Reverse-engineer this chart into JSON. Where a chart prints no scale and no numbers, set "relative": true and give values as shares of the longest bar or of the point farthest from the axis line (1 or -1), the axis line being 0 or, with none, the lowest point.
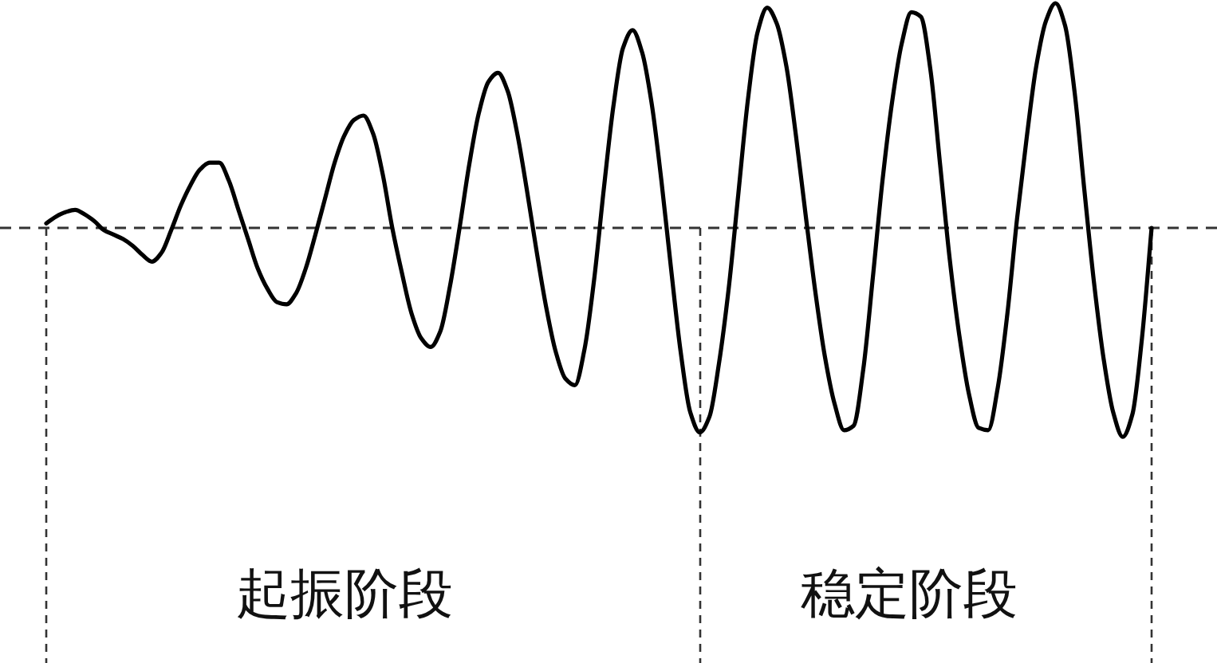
{
  "chart_data": {
    "type": "line",
    "relative": true,
    "categories": [
      null,
      null,
      null,
      null,
      null,
      null,
      null,
      null,
      null,
      null,
      null,
      null,
      null,
      null,
      null,
      null,
      null,
      null,
      null,
      null,
      null,
      null,
      null,
      null,
      null,
      null,
      null,
      null,
      null,
      null,
      null,
      null,
      null,
      null,
      null,
      null,
      null,
      null,
      null,
      null,
      null,
      null,
      null,
      null,
      null,
      null,
      null,
      null,
      null,
      null,
      null,
      null,
      null,
      null,
      null,
      null,
      null,
      null,
      null,
      null,
      null,
      null,
      null,
      null,
      null,
      null,
      null,
      null,
      null,
      null,
      null,
      null,
      null,
      null,
      null,
      null,
      null,
      null,
      null,
      null,
      null,
      null,
      null,
      null,
      null,
      null,
      null,
      null,
      null,
      null,
      null,
      null,
      null,
      null,
      null,
      null,
      null,
      null,
      null,
      null,
      null,
      null,
      null,
      null,
      null,
      null,
      null,
      null,
      null,
      null,
      null,
      null,
      null,
      null,
      null,
      null
    ],
    "series": [
      {
        "color": "#000000",
        "values": [
          0.02,
          0.05,
          0.07,
          0.08,
          0.06,
          0.03,
          -0.01,
          -0.03,
          -0.05,
          -0.08,
          -0.12,
          -0.15,
          -0.11,
          -0.01,
          0.1,
          0.19,
          0.26,
          0.29,
          0.29,
          0.21,
          0.08,
          -0.05,
          -0.18,
          -0.27,
          -0.33,
          -0.34,
          -0.29,
          -0.18,
          -0.03,
          0.13,
          0.29,
          0.41,
          0.48,
          0.5,
          0.42,
          0.24,
          0.0,
          -0.2,
          -0.38,
          -0.49,
          -0.53,
          -0.46,
          -0.26,
          0.0,
          0.28,
          0.51,
          0.65,
          0.69,
          0.61,
          0.42,
          0.17,
          -0.1,
          -0.35,
          -0.55,
          -0.67,
          -0.7,
          -0.54,
          -0.23,
          0.17,
          0.54,
          0.8,
          0.88,
          0.78,
          0.55,
          0.21,
          -0.18,
          -0.55,
          -0.82,
          -0.91,
          -0.84,
          -0.6,
          -0.27,
          0.15,
          0.57,
          0.87,
          0.98,
          0.91,
          0.72,
          0.41,
          0.06,
          -0.28,
          -0.57,
          -0.78,
          -0.9,
          -0.88,
          -0.63,
          -0.22,
          0.21,
          0.56,
          0.82,
          0.96,
          0.94,
          0.7,
          0.28,
          -0.14,
          -0.48,
          -0.74,
          -0.89,
          -0.9,
          -0.71,
          -0.38,
          0.04,
          0.4,
          0.72,
          0.92,
          1.0,
          0.9,
          0.6,
          0.17,
          -0.24,
          -0.58,
          -0.82,
          -0.93,
          -0.83,
          -0.49,
          0.0
        ]
      }
    ],
    "ref_lines": [
      {
        "axis": "y",
        "value": 0,
        "color": "#333333",
        "line_style": "dashed"
      }
    ],
    "grid": "x",
    "annotations": [
      "起振阶段",
      "稳定阶段"
    ]
  }
}
